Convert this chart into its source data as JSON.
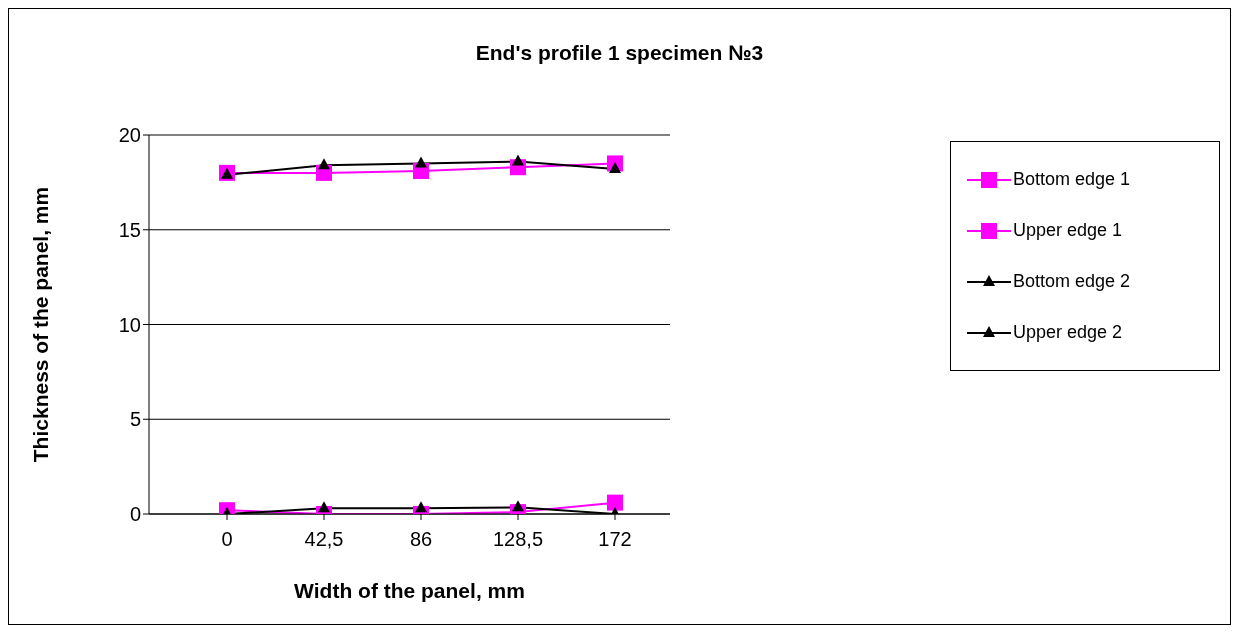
{
  "chart_data": {
    "type": "line",
    "title": "End's profile 1 specimen №3",
    "xlabel": "Width of the panel, mm",
    "ylabel": "Thickness of the panel, mm",
    "categories": [
      "0",
      "42,5",
      "86",
      "128,5",
      "172"
    ],
    "series": [
      {
        "name": "Bottom edge 1",
        "color": "#ff00ff",
        "marker": "square",
        "values": [
          0.2,
          0,
          0,
          0.1,
          0.6
        ]
      },
      {
        "name": "Upper edge 1",
        "color": "#ff00ff",
        "marker": "square",
        "values": [
          18.0,
          18.0,
          18.1,
          18.3,
          18.5
        ]
      },
      {
        "name": "Bottom edge 2",
        "color": "#000000",
        "marker": "triangle",
        "values": [
          0,
          0.3,
          0.3,
          0.35,
          0
        ]
      },
      {
        "name": "Upper edge 2",
        "color": "#000000",
        "marker": "triangle",
        "values": [
          17.9,
          18.4,
          18.5,
          18.6,
          18.2
        ]
      }
    ],
    "ylim": [
      0,
      20
    ],
    "yticks": [
      0,
      5,
      10,
      15,
      20
    ],
    "grid": "y",
    "legend": "right",
    "line_style": "solid"
  }
}
